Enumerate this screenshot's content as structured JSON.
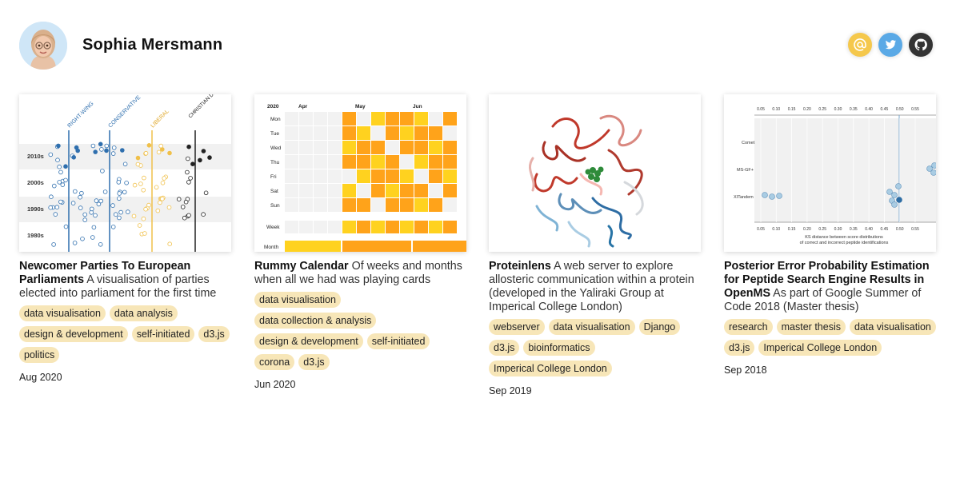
{
  "profile": {
    "name": "Sophia Mersmann"
  },
  "social": [
    {
      "icon": "at-icon",
      "color": "#f5c84c"
    },
    {
      "icon": "twitter-icon",
      "color": "#5aa9e6"
    },
    {
      "icon": "github-icon",
      "color": "#333333"
    }
  ],
  "projects": [
    {
      "title": "Newcomer Parties To European Parliaments",
      "subtitle": "A visualisation of parties elected into parliament for the first time",
      "tags": [
        "data visualisation",
        "data analysis",
        "design & development",
        "self-initiated",
        "d3.js",
        "politics"
      ],
      "date": "Aug 2020",
      "thumb": {
        "columns": [
          "RIGHT-WING",
          "CONSERVATIVE",
          "LIBERAL",
          "CHRISTIAN DEMOCRACY"
        ],
        "rows": [
          "2010s",
          "2000s",
          "1990s",
          "1980s"
        ]
      }
    },
    {
      "title": "Rummy Calendar",
      "subtitle": "Of weeks and months when all we had was playing cards",
      "tags": [
        "data visualisation",
        "data collection & analysis",
        "design & development",
        "self-initiated",
        "corona",
        "d3.js"
      ],
      "date": "Jun 2020",
      "thumb": {
        "year": "2020",
        "months": [
          "Apr",
          "May",
          "Jun"
        ],
        "days": [
          "Mon",
          "Tue",
          "Wed",
          "Thu",
          "Fri",
          "Sat",
          "Sun"
        ],
        "week_label": "Week",
        "month_label": "Month"
      }
    },
    {
      "title": "Proteinlens",
      "subtitle": "A web server to explore allosteric communication within a protein (developed in the Yaliraki Group at Imperical College London)",
      "tags": [
        "webserver",
        "data visualisation",
        "Django",
        "d3.js",
        "bioinformatics",
        "Imperical College London"
      ],
      "date": "Sep 2019"
    },
    {
      "title": "Posterior Error Probability Estimation for Peptide Search Engine Results in OpenMS",
      "subtitle": "As part of Google Summer of Code 2018 (Master thesis)",
      "tags": [
        "research",
        "master thesis",
        "data visualisation",
        "d3.js",
        "Imperical College London"
      ],
      "date": "Sep 2018",
      "thumb": {
        "ticks": [
          "0.05",
          "0.10",
          "0.15",
          "0.20",
          "0.25",
          "0.30",
          "0.35",
          "0.40",
          "0.45",
          "0.50",
          "0.55"
        ],
        "engines": [
          "Comet",
          "MS-GF+",
          "XITandem"
        ],
        "xlabel": "KS distance between score distributions",
        "xlabel2": "of correct and incorrect peptide identifications"
      }
    }
  ]
}
